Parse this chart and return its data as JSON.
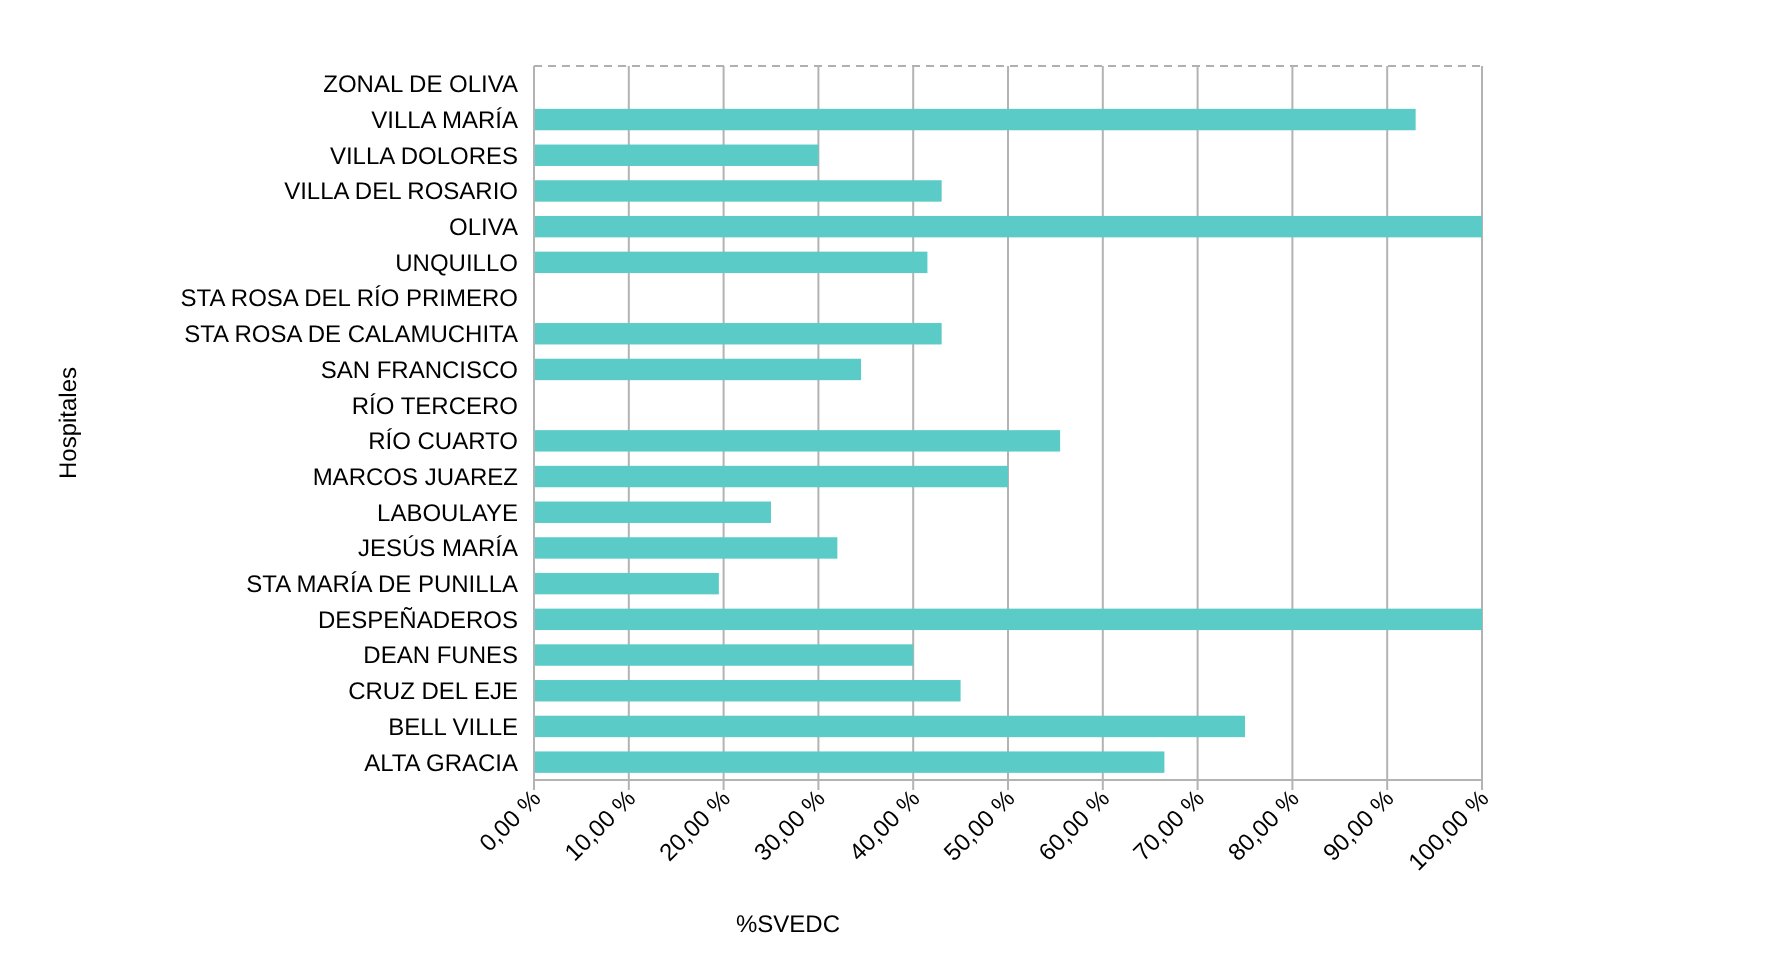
{
  "chart_data": {
    "type": "bar",
    "orientation": "horizontal",
    "xlabel": "%SVEDC",
    "ylabel": "Hospitales",
    "categories": [
      "ZONAL DE OLIVA",
      "VILLA MARÍA",
      "VILLA DOLORES",
      "VILLA DEL ROSARIO",
      "OLIVA",
      "UNQUILLO",
      "STA ROSA DEL RÍO PRIMERO",
      "STA ROSA DE CALAMUCHITA",
      "SAN FRANCISCO",
      "RÍO TERCERO",
      "RÍO CUARTO",
      "MARCOS JUAREZ",
      "LABOULAYE",
      "JESÚS MARÍA",
      "STA MARÍA DE PUNILLA",
      "DESPEÑADEROS",
      "DEAN FUNES",
      "CRUZ DEL EJE",
      "BELL VILLE",
      "ALTA GRACIA"
    ],
    "values": [
      0,
      93,
      30,
      43,
      100,
      41.5,
      0,
      43,
      34.5,
      0,
      55.5,
      50,
      25,
      32,
      19.5,
      100,
      40,
      45,
      75,
      66.5
    ],
    "color": "#5bcbc8",
    "xlim": [
      0,
      100
    ],
    "xticks": [
      {
        "value": 0,
        "label": "0,00 %"
      },
      {
        "value": 10,
        "label": "10,00 %"
      },
      {
        "value": 20,
        "label": "20,00 %"
      },
      {
        "value": 30,
        "label": "30,00 %"
      },
      {
        "value": 40,
        "label": "40,00 %"
      },
      {
        "value": 50,
        "label": "50,00 %"
      },
      {
        "value": 60,
        "label": "60,00 %"
      },
      {
        "value": 70,
        "label": "70,00 %"
      },
      {
        "value": 80,
        "label": "80,00 %"
      },
      {
        "value": 90,
        "label": "90,00 %"
      },
      {
        "value": 100,
        "label": "100,00 %"
      }
    ],
    "grid": "x"
  }
}
